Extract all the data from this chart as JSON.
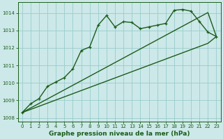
{
  "xlabel": "Graphe pression niveau de la mer (hPa)",
  "bg_color": "#cce8e8",
  "grid_color": "#99cccc",
  "line_color": "#1a5c1a",
  "hours": [
    0,
    1,
    2,
    3,
    4,
    5,
    6,
    7,
    8,
    9,
    10,
    11,
    12,
    13,
    14,
    15,
    16,
    17,
    18,
    19,
    20,
    21,
    22,
    23
  ],
  "line_main": [
    1008.3,
    1008.8,
    1009.1,
    1009.8,
    1010.05,
    1010.3,
    1010.8,
    1011.85,
    1012.05,
    1013.3,
    1013.85,
    1013.2,
    1013.5,
    1013.45,
    1013.1,
    1013.2,
    1013.3,
    1013.4,
    1014.15,
    1014.2,
    1014.1,
    1013.5,
    1012.9,
    1012.65
  ],
  "line_straight1": [
    1008.3,
    1008.48,
    1008.66,
    1008.84,
    1009.02,
    1009.2,
    1009.38,
    1009.56,
    1009.74,
    1009.92,
    1010.1,
    1010.28,
    1010.46,
    1010.64,
    1010.82,
    1011.0,
    1011.18,
    1011.36,
    1011.54,
    1011.72,
    1011.9,
    1012.08,
    1012.26,
    1012.65
  ],
  "line_straight2": [
    1008.3,
    1008.56,
    1008.82,
    1009.08,
    1009.34,
    1009.6,
    1009.86,
    1010.12,
    1010.38,
    1010.64,
    1010.9,
    1011.16,
    1011.42,
    1011.68,
    1011.94,
    1012.2,
    1012.46,
    1012.72,
    1012.98,
    1013.24,
    1013.5,
    1013.76,
    1014.02,
    1012.65
  ],
  "ylim": [
    1007.8,
    1014.6
  ],
  "yticks": [
    1008,
    1009,
    1010,
    1011,
    1012,
    1013,
    1014
  ],
  "xlim": [
    -0.5,
    23.5
  ],
  "xticks": [
    0,
    1,
    2,
    3,
    4,
    5,
    6,
    7,
    8,
    9,
    10,
    11,
    12,
    13,
    14,
    15,
    16,
    17,
    18,
    19,
    20,
    21,
    22,
    23
  ],
  "tick_fontsize": 5.0,
  "xlabel_fontsize": 6.5,
  "marker_size": 3.5,
  "linewidth": 1.0
}
